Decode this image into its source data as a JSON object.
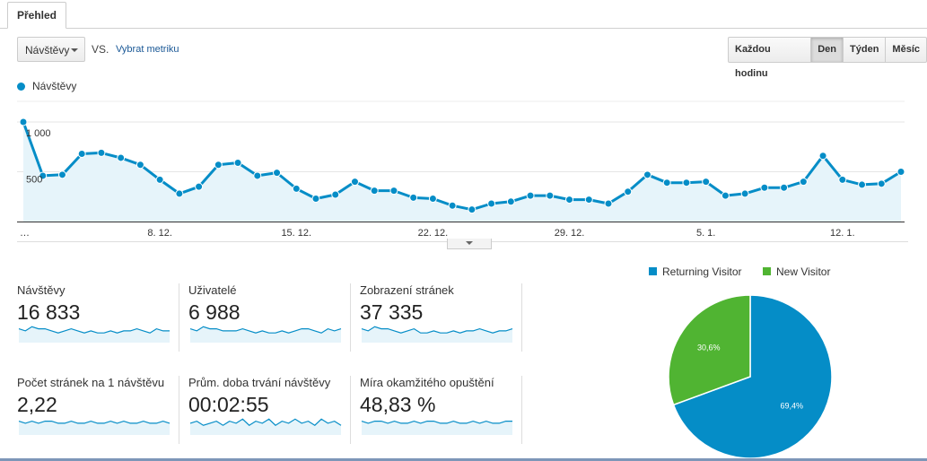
{
  "tabs": {
    "overview": "Přehled"
  },
  "controls": {
    "metric_select": "Návštěvy",
    "vs_label": "VS.",
    "pick_metric_link": "Vybrat metriku",
    "periods": [
      "Každou hodinu",
      "Den",
      "Týden",
      "Měsíc"
    ],
    "active_period": "Den"
  },
  "colors": {
    "primary": "#058dc7",
    "fill": "#e6f4fa",
    "secondary": "#50b432"
  },
  "chart_data": [
    {
      "type": "area",
      "title": "",
      "series": [
        {
          "name": "Návštěvy",
          "values": [
            1000,
            460,
            470,
            680,
            690,
            640,
            570,
            420,
            280,
            350,
            570,
            590,
            460,
            490,
            330,
            230,
            270,
            400,
            310,
            310,
            240,
            230,
            160,
            120,
            180,
            200,
            260,
            260,
            220,
            220,
            180,
            300,
            470,
            390,
            390,
            400,
            260,
            280,
            340,
            340,
            400,
            660,
            420,
            370,
            380,
            500
          ]
        }
      ],
      "ylim": [
        0,
        1000
      ],
      "y_ticks": [
        {
          "value": 1000,
          "label": "1 000"
        },
        {
          "value": 500,
          "label": "500"
        }
      ],
      "x_tick_labels": [
        {
          "index": 0,
          "label": "…"
        },
        {
          "index": 7,
          "label": "8. 12."
        },
        {
          "index": 14,
          "label": "15. 12."
        },
        {
          "index": 21,
          "label": "22. 12."
        },
        {
          "index": 28,
          "label": "29. 12."
        },
        {
          "index": 35,
          "label": "5. 1."
        },
        {
          "index": 42,
          "label": "12. 1."
        }
      ]
    },
    {
      "type": "pie",
      "series": [
        {
          "name": "Returning Visitor",
          "value": 69.4,
          "label": "69,4%"
        },
        {
          "name": "New Visitor",
          "value": 30.6,
          "label": "30,6%"
        }
      ]
    }
  ],
  "metrics": [
    {
      "label": "Návštěvy",
      "value": "16 833",
      "spark": [
        5,
        4,
        6,
        5,
        5,
        4,
        3,
        4,
        5,
        4,
        3,
        4,
        3,
        3,
        4,
        3,
        4,
        4,
        5,
        4,
        3,
        5,
        4,
        4
      ]
    },
    {
      "label": "Uživatelé",
      "value": "6 988",
      "spark": [
        5,
        4,
        6,
        5,
        5,
        4,
        4,
        4,
        5,
        4,
        3,
        4,
        3,
        3,
        4,
        3,
        4,
        5,
        5,
        4,
        3,
        5,
        4,
        5
      ]
    },
    {
      "label": "Zobrazení stránek",
      "value": "37 335",
      "spark": [
        5,
        4,
        6,
        5,
        5,
        4,
        3,
        4,
        5,
        3,
        3,
        4,
        3,
        3,
        4,
        3,
        4,
        4,
        5,
        4,
        3,
        4,
        4,
        5
      ]
    },
    {
      "label": "Počet stránek na 1 návštěvu",
      "value": "2,22",
      "spark": [
        5,
        4,
        5,
        4,
        5,
        5,
        4,
        4,
        5,
        4,
        4,
        5,
        4,
        4,
        5,
        4,
        5,
        4,
        4,
        5,
        4,
        4,
        5,
        4
      ]
    },
    {
      "label": "Prům. doba trvání návštěvy",
      "value": "00:02:55",
      "spark": [
        4,
        5,
        3,
        4,
        5,
        3,
        5,
        4,
        6,
        3,
        5,
        4,
        6,
        3,
        5,
        4,
        6,
        4,
        5,
        3,
        6,
        4,
        5,
        3
      ]
    },
    {
      "label": "Míra okamžitého opuštění",
      "value": "48,83 %",
      "spark": [
        5,
        4,
        5,
        5,
        4,
        5,
        4,
        4,
        5,
        4,
        5,
        5,
        4,
        4,
        5,
        4,
        4,
        5,
        4,
        5,
        4,
        4,
        5,
        5
      ]
    }
  ]
}
